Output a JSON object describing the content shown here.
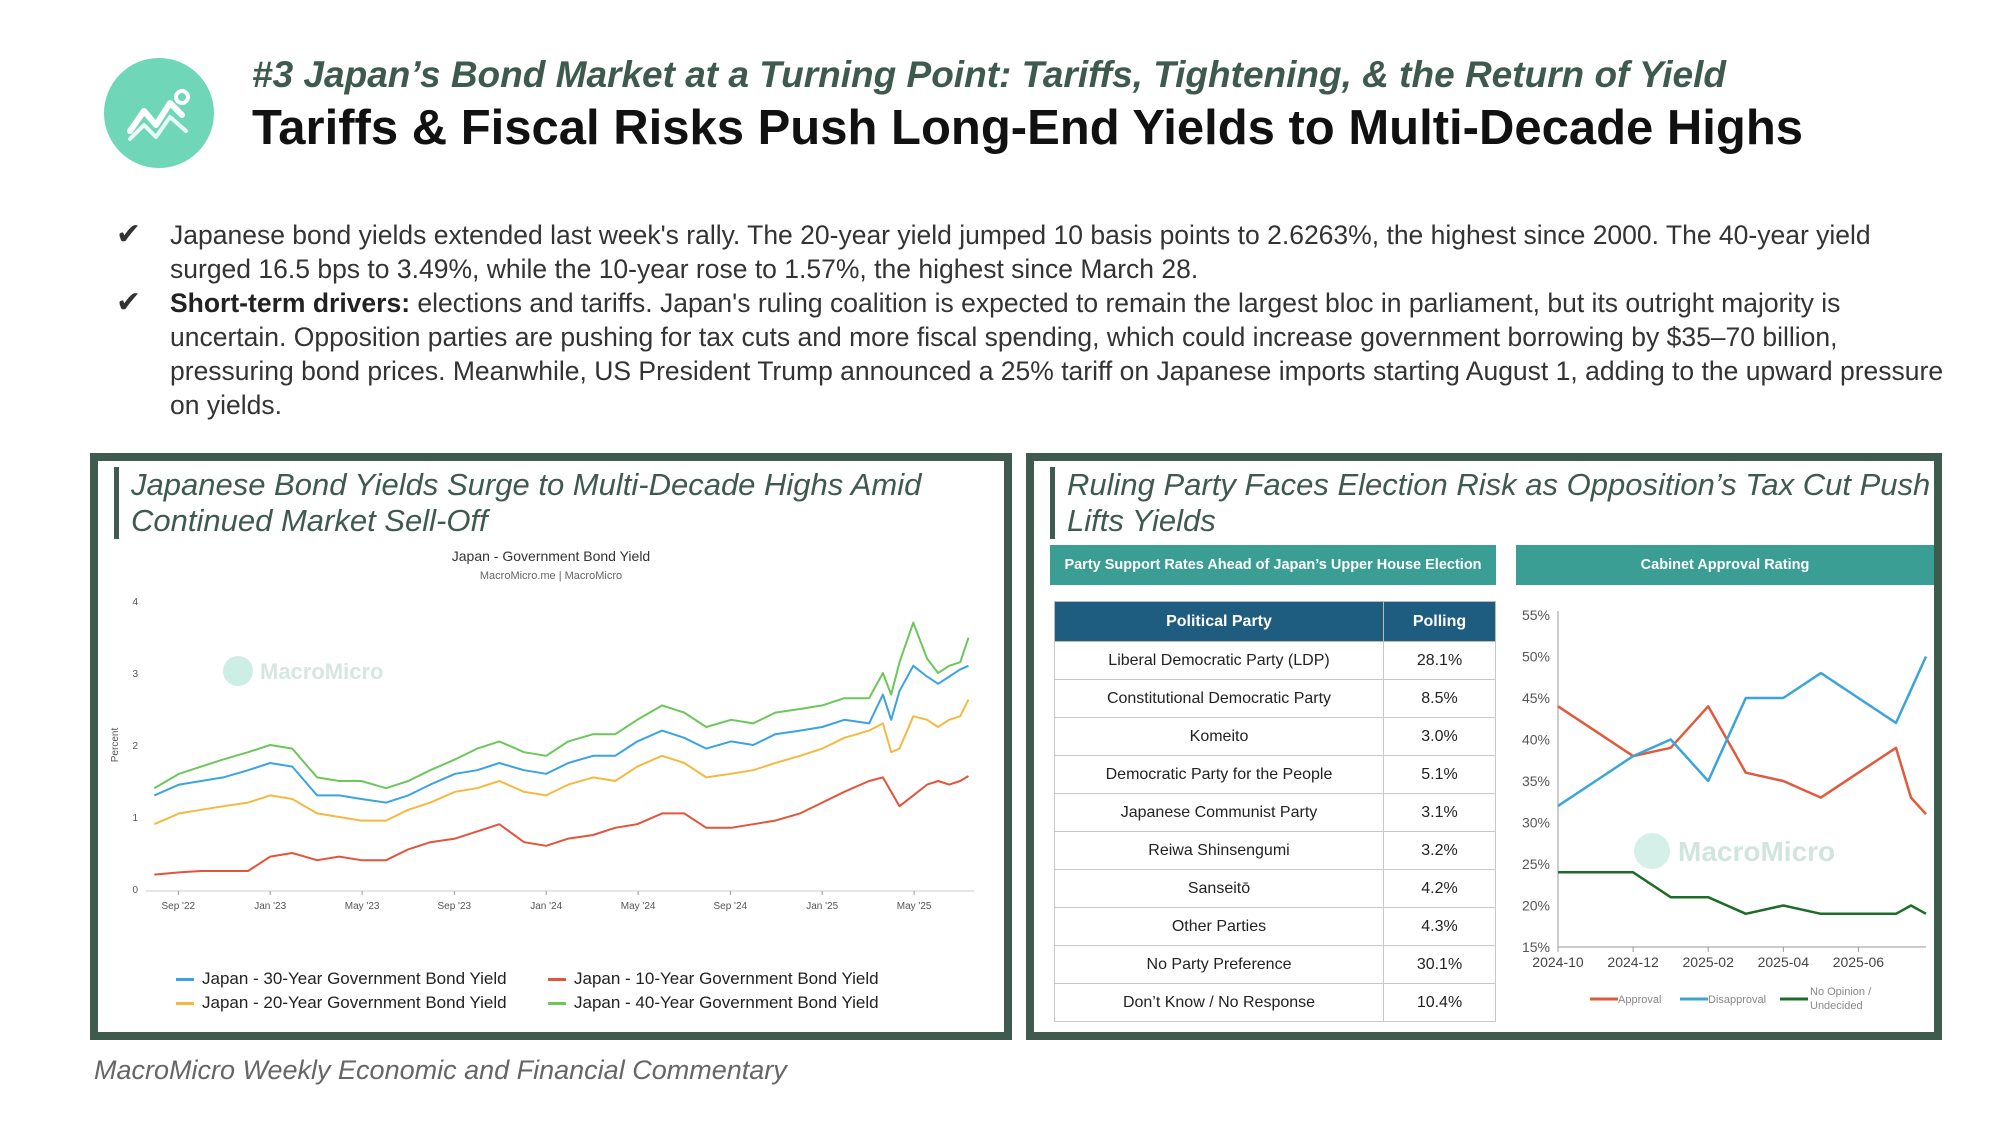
{
  "header": {
    "eyebrow": "#3 Japan’s Bond Market at a Turning Point: Tariffs, Tightening, & the Return of Yield",
    "title": "Tariffs & Fiscal Risks Push Long-End Yields to Multi-Decade Highs",
    "logo_icon": "chart-trend-icon"
  },
  "bullets": [
    {
      "bold": "",
      "text": "Japanese bond yields extended last week's rally. The 20-year yield jumped 10 basis points to 2.6263%, the highest since 2000. The 40-year yield surged 16.5 bps to 3.49%, while the 10-year rose to 1.57%, the highest since March 28."
    },
    {
      "bold": "Short-term drivers:",
      "text": " elections and tariffs. Japan's ruling coalition is expected to remain the largest bloc in parliament, but its outright majority is uncertain. Opposition parties are pushing for tax cuts and more fiscal spending, which could increase government borrowing by $35–70 billion, pressuring bond prices. Meanwhile, US President Trump announced a 25% tariff on Japanese imports starting August 1, adding to the upward pressure on yields."
    }
  ],
  "left_panel": {
    "title": "Japanese Bond Yields Surge to Multi-Decade Highs Amid Continued Market Sell-Off"
  },
  "right_panel": {
    "title": "Ruling Party Faces Election Risk as Opposition’s Tax Cut Push Lifts Yields",
    "table_header": "Party Support Rates Ahead of Japan’s Upper House Election",
    "chart_header": "Cabinet Approval Rating"
  },
  "footer": "MacroMicro Weekly Economic and Financial Commentary",
  "chart_data": [
    {
      "type": "line",
      "title": "Japan - Government Bond Yield",
      "subtitle": "MacroMicro.me | MacroMicro",
      "watermark": "MacroMicro",
      "ylabel": "Percent",
      "ylim": [
        0,
        4
      ],
      "yticks": [
        0,
        1,
        2,
        3,
        4
      ],
      "xlim": [
        2022.55,
        2025.55
      ],
      "xticks": [
        {
          "label": "Sep '22",
          "t": 2022.667
        },
        {
          "label": "Jan '23",
          "t": 2023.0
        },
        {
          "label": "May '23",
          "t": 2023.333
        },
        {
          "label": "Sep '23",
          "t": 2023.667
        },
        {
          "label": "Jan '24",
          "t": 2024.0
        },
        {
          "label": "May '24",
          "t": 2024.333
        },
        {
          "label": "Sep '24",
          "t": 2024.667
        },
        {
          "label": "Jan '25",
          "t": 2025.0
        },
        {
          "label": "May '25",
          "t": 2025.333
        }
      ],
      "x": [
        2022.58,
        2022.67,
        2022.75,
        2022.83,
        2022.92,
        2023.0,
        2023.08,
        2023.17,
        2023.25,
        2023.33,
        2023.42,
        2023.5,
        2023.58,
        2023.67,
        2023.75,
        2023.83,
        2023.92,
        2024.0,
        2024.08,
        2024.17,
        2024.25,
        2024.33,
        2024.42,
        2024.5,
        2024.58,
        2024.67,
        2024.75,
        2024.83,
        2024.92,
        2025.0,
        2025.08,
        2025.17,
        2025.22,
        2025.25,
        2025.28,
        2025.33,
        2025.38,
        2025.42,
        2025.46,
        2025.5,
        2025.53
      ],
      "series": [
        {
          "name": "Japan - 30-Year Government Bond Yield",
          "color": "#3ba4e0",
          "values": [
            1.3,
            1.45,
            1.5,
            1.55,
            1.65,
            1.75,
            1.7,
            1.3,
            1.3,
            1.25,
            1.2,
            1.3,
            1.45,
            1.6,
            1.65,
            1.75,
            1.65,
            1.6,
            1.75,
            1.85,
            1.85,
            2.05,
            2.2,
            2.1,
            1.95,
            2.05,
            2.0,
            2.15,
            2.2,
            2.25,
            2.35,
            2.3,
            2.7,
            2.35,
            2.75,
            3.1,
            2.95,
            2.85,
            2.95,
            3.05,
            3.1
          ]
        },
        {
          "name": "Japan - 10-Year Government Bond Yield",
          "color": "#e2543c",
          "values": [
            0.2,
            0.23,
            0.25,
            0.25,
            0.25,
            0.45,
            0.5,
            0.4,
            0.45,
            0.4,
            0.4,
            0.55,
            0.65,
            0.7,
            0.8,
            0.9,
            0.65,
            0.6,
            0.7,
            0.75,
            0.85,
            0.9,
            1.05,
            1.05,
            0.85,
            0.85,
            0.9,
            0.95,
            1.05,
            1.2,
            1.35,
            1.5,
            1.55,
            1.35,
            1.15,
            1.3,
            1.45,
            1.5,
            1.45,
            1.5,
            1.57
          ]
        },
        {
          "name": "Japan - 20-Year Government Bond Yield",
          "color": "#f4b942",
          "values": [
            0.9,
            1.05,
            1.1,
            1.15,
            1.2,
            1.3,
            1.25,
            1.05,
            1.0,
            0.95,
            0.95,
            1.1,
            1.2,
            1.35,
            1.4,
            1.5,
            1.35,
            1.3,
            1.45,
            1.55,
            1.5,
            1.7,
            1.85,
            1.75,
            1.55,
            1.6,
            1.65,
            1.75,
            1.85,
            1.95,
            2.1,
            2.2,
            2.3,
            1.9,
            1.95,
            2.4,
            2.35,
            2.25,
            2.35,
            2.4,
            2.63
          ]
        },
        {
          "name": "Japan - 40-Year Government Bond Yield",
          "color": "#6cc75a",
          "values": [
            1.4,
            1.6,
            1.7,
            1.8,
            1.9,
            2.0,
            1.95,
            1.55,
            1.5,
            1.5,
            1.4,
            1.5,
            1.65,
            1.8,
            1.95,
            2.05,
            1.9,
            1.85,
            2.05,
            2.15,
            2.15,
            2.35,
            2.55,
            2.45,
            2.25,
            2.35,
            2.3,
            2.45,
            2.5,
            2.55,
            2.65,
            2.65,
            3.0,
            2.7,
            3.15,
            3.7,
            3.2,
            3.0,
            3.1,
            3.15,
            3.49
          ]
        }
      ]
    },
    {
      "type": "table",
      "title": "Party Support Rates Ahead of Japan’s Upper House Election",
      "columns": [
        "Political Party",
        "Polling"
      ],
      "rows": [
        [
          "Liberal Democratic Party (LDP)",
          "28.1%"
        ],
        [
          "Constitutional Democratic Party",
          "8.5%"
        ],
        [
          "Komeito",
          "3.0%"
        ],
        [
          "Democratic Party for the People",
          "5.1%"
        ],
        [
          "Japanese Communist Party",
          "3.1%"
        ],
        [
          "Reiwa Shinsengumi",
          "3.2%"
        ],
        [
          "Sanseitō",
          "4.2%"
        ],
        [
          "Other Parties",
          "4.3%"
        ],
        [
          "No Party Preference",
          "30.1%"
        ],
        [
          "Don’t Know / No Response",
          "10.4%"
        ]
      ]
    },
    {
      "type": "line",
      "title": "Cabinet Approval Rating",
      "watermark": "MacroMicro",
      "ylim": [
        15,
        55
      ],
      "yticks": [
        "15%",
        "20%",
        "25%",
        "30%",
        "35%",
        "40%",
        "45%",
        "50%",
        "55%"
      ],
      "xlim": [
        0,
        9.8
      ],
      "xticks": [
        {
          "label": "2024-10",
          "t": 0
        },
        {
          "label": "2024-12",
          "t": 2
        },
        {
          "label": "2025-02",
          "t": 4
        },
        {
          "label": "2025-04",
          "t": 6
        },
        {
          "label": "2025-06",
          "t": 8
        }
      ],
      "x": [
        0,
        1,
        2,
        3,
        4,
        5,
        6,
        7,
        8,
        9,
        9.4,
        9.8
      ],
      "series": [
        {
          "name": "Approval",
          "color": "#e05a3c",
          "values": [
            44,
            41,
            38,
            39,
            44,
            36,
            35,
            33,
            36,
            39,
            33,
            31
          ]
        },
        {
          "name": "Disapproval",
          "color": "#3ba4d8",
          "values": [
            32,
            35,
            38,
            40,
            35,
            45,
            45,
            48,
            45,
            42,
            46,
            50
          ]
        },
        {
          "name": "No Opinion / Undecided",
          "color": "#1e6b2a",
          "values": [
            24,
            24,
            24,
            21,
            21,
            19,
            20,
            19,
            19,
            19,
            20,
            19
          ]
        }
      ]
    }
  ]
}
